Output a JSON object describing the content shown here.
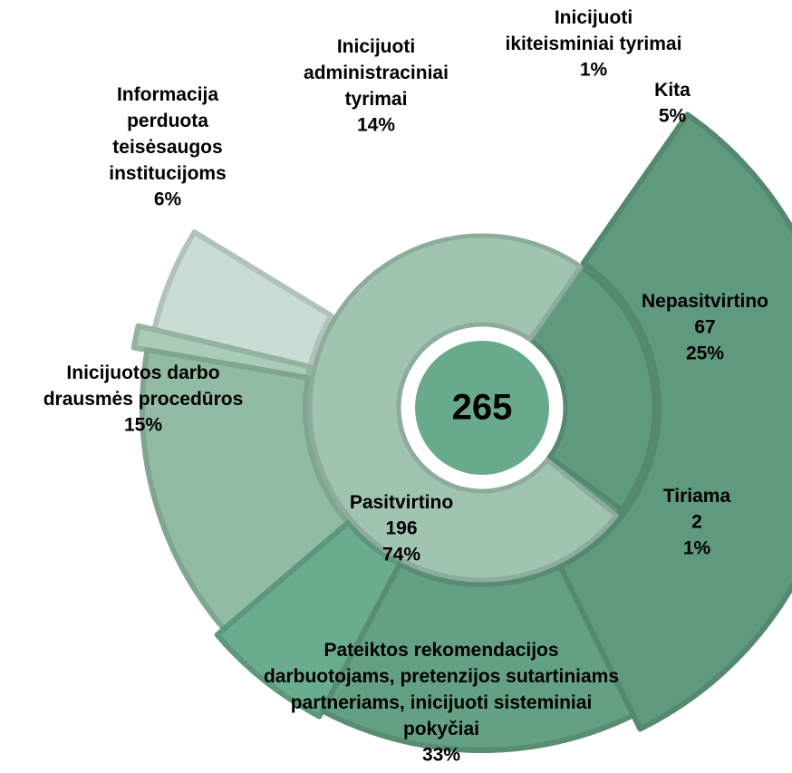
{
  "chart_data": {
    "type": "sunburst",
    "total": 265,
    "center_color": "#6aaa8c",
    "inner": {
      "names": [
        "Nepasitvirtino",
        "Tiriama",
        "Pasitvirtino"
      ],
      "counts": [
        67,
        2,
        196
      ],
      "values": [
        25,
        1,
        74
      ],
      "value_labels": [
        "25%",
        "1%",
        "74%"
      ],
      "colors": [
        "#5f9a7e",
        "#5f9a7e",
        "#a0c4b0"
      ]
    },
    "outer": {
      "names": [
        "Pateiktos rekomendacijos darbuotojams, pretenzijos sutartiniams partneriams, inicijuoti sisteminiai pokyčiai",
        "Inicijuotos darbo drausmės procedūros",
        "Informacija perduota teisėsaugos institucijoms",
        "Inicijuoti administraciniai tyrimai",
        "Inicijuoti ikiteisminiai tyrimai",
        "Kita"
      ],
      "values": [
        33,
        15,
        6,
        14,
        1,
        5
      ],
      "value_labels": [
        "33%",
        "15%",
        "6%",
        "14%",
        "1%",
        "5%"
      ],
      "colors": [
        "#5f9a7e",
        "#64a083",
        "#6aac8e",
        "#92bba4",
        "#a9cbb7",
        "#c9ddd3"
      ]
    }
  }
}
